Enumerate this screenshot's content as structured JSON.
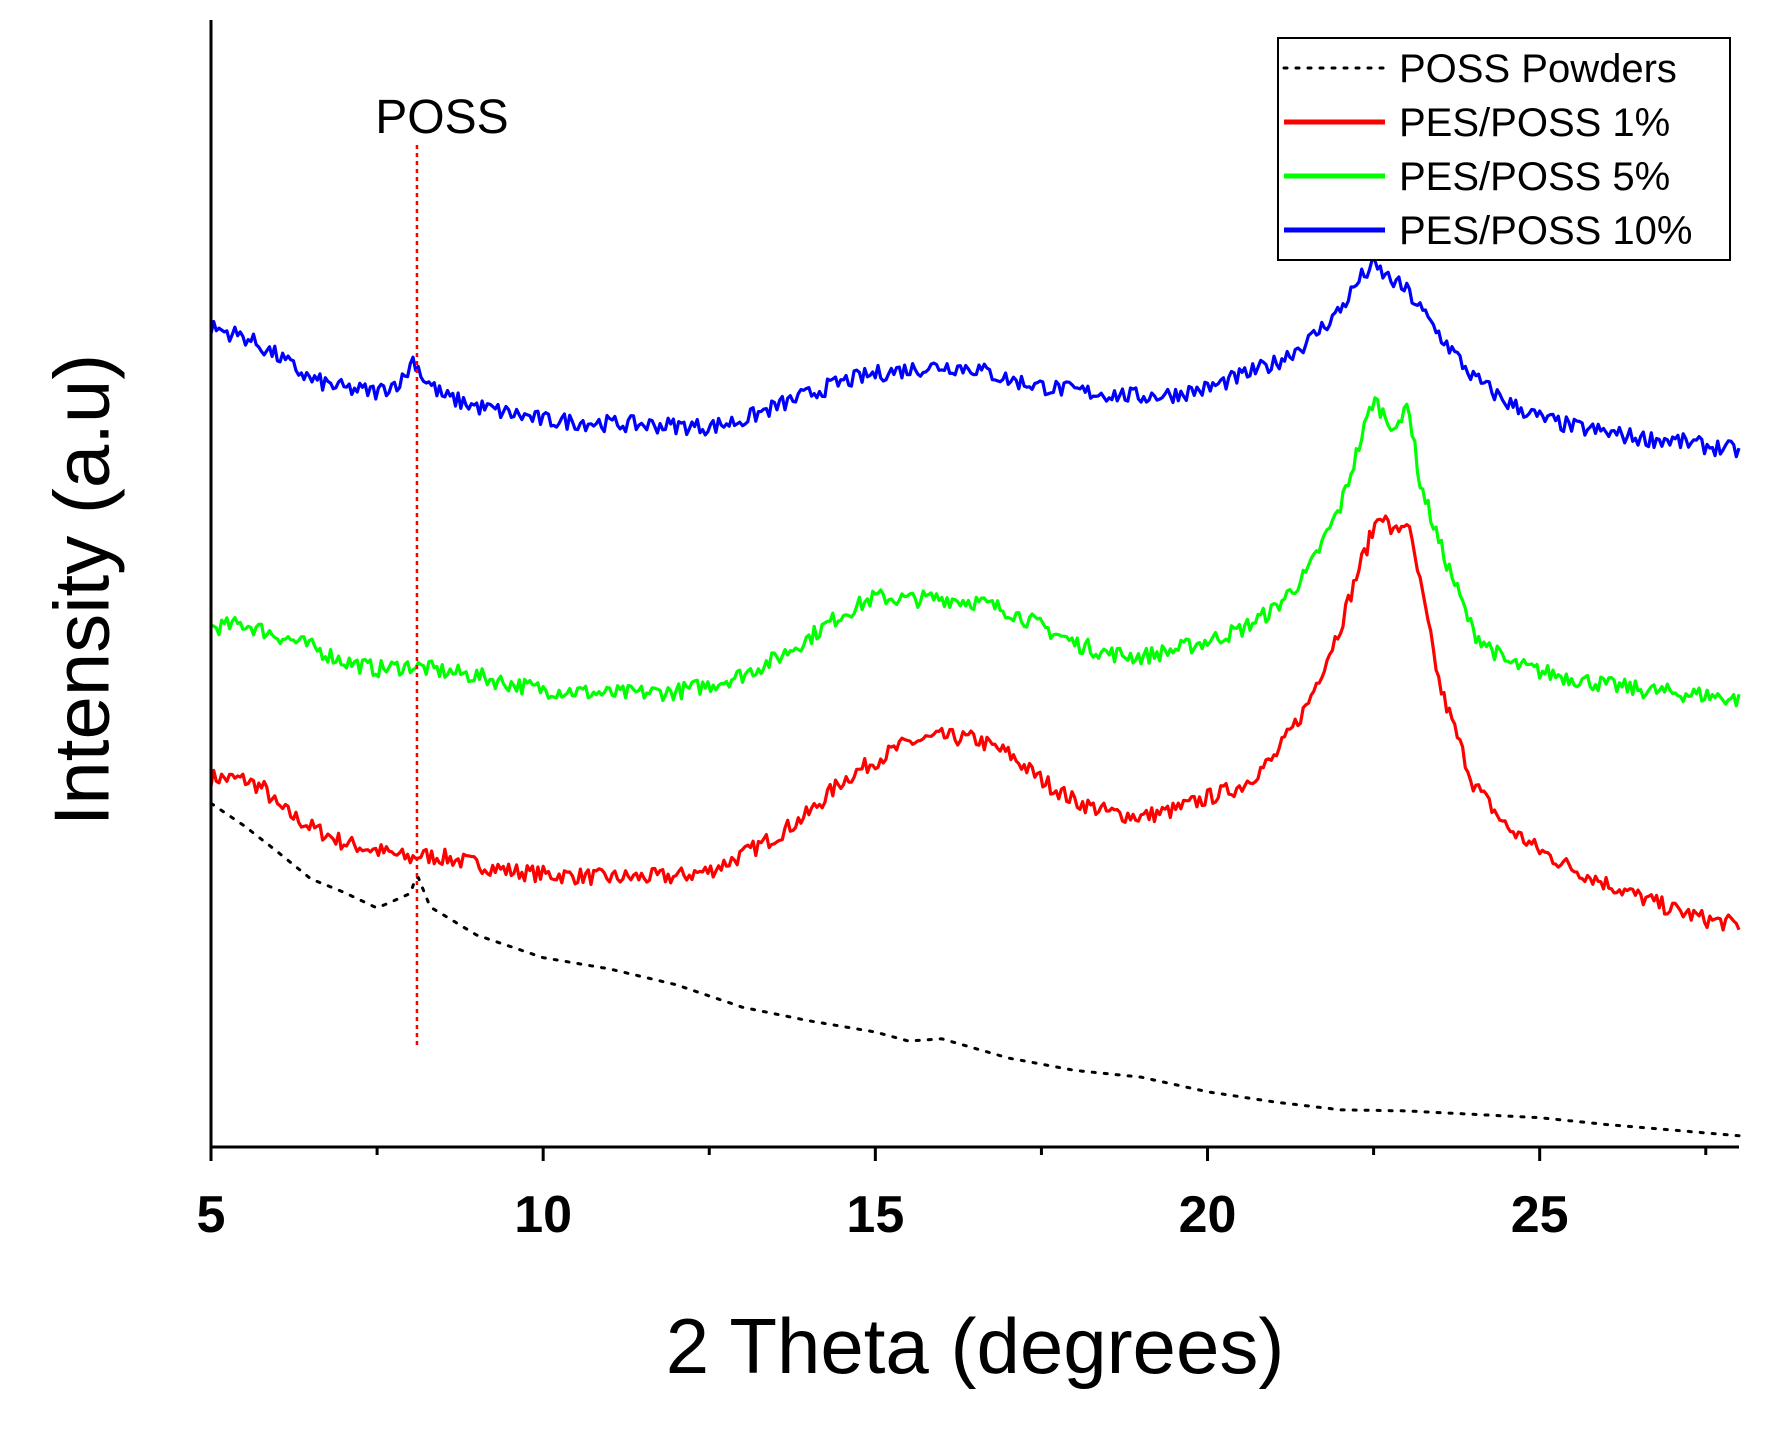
{
  "chart_data": {
    "type": "line",
    "title": "",
    "xlabel": "2 Theta (degrees)",
    "ylabel": "Intensity (a.u)",
    "xlim": [
      5,
      28
    ],
    "ylim": [
      0,
      100
    ],
    "x_ticks": [
      5,
      10,
      15,
      20,
      25
    ],
    "x_tick_labels": [
      "5",
      "10",
      "15",
      "20",
      "25"
    ],
    "y_ticks_shown": false,
    "grid": false,
    "legend_position": "top-right",
    "annotation": {
      "label": "POSS",
      "x": 8.1,
      "style": "red dotted vertical line"
    },
    "series": [
      {
        "name": "POSS Powders",
        "color": "#000000",
        "style": "dotted",
        "points": [
          [
            5,
            30.5
          ],
          [
            5.5,
            28.5
          ],
          [
            6,
            26.2
          ],
          [
            6.5,
            23.8
          ],
          [
            7,
            22.6
          ],
          [
            7.5,
            21.2
          ],
          [
            8,
            22.5
          ],
          [
            8.1,
            24.2
          ],
          [
            8.3,
            21.3
          ],
          [
            9,
            18.8
          ],
          [
            10,
            16.8
          ],
          [
            11,
            15.8
          ],
          [
            12,
            14.4
          ],
          [
            13,
            12.4
          ],
          [
            14,
            11.2
          ],
          [
            15,
            10.2
          ],
          [
            15.5,
            9.4
          ],
          [
            16,
            9.6
          ],
          [
            17,
            7.9
          ],
          [
            18,
            6.8
          ],
          [
            19,
            6.2
          ],
          [
            20,
            4.9
          ],
          [
            21,
            4.0
          ],
          [
            22,
            3.3
          ],
          [
            23,
            3.2
          ],
          [
            24,
            2.9
          ],
          [
            25,
            2.6
          ],
          [
            26,
            2.0
          ],
          [
            27,
            1.5
          ],
          [
            28,
            1.0
          ]
        ]
      },
      {
        "name": "PES/POSS 1%",
        "color": "#ff0000",
        "style": "solid",
        "points": [
          [
            5,
            32.8
          ],
          [
            5.5,
            32.6
          ],
          [
            5.8,
            31.8
          ],
          [
            6,
            30.2
          ],
          [
            6.5,
            28.4
          ],
          [
            7,
            27.0
          ],
          [
            7.5,
            26.3
          ],
          [
            8,
            25.6
          ],
          [
            8.1,
            25.9
          ],
          [
            8.5,
            25.7
          ],
          [
            9,
            25.1
          ],
          [
            9.5,
            24.5
          ],
          [
            10,
            24.2
          ],
          [
            11,
            23.9
          ],
          [
            12,
            24.0
          ],
          [
            12.5,
            24.5
          ],
          [
            13,
            25.9
          ],
          [
            13.5,
            27.6
          ],
          [
            14,
            29.6
          ],
          [
            14.5,
            32.5
          ],
          [
            15,
            34.3
          ],
          [
            15.5,
            35.9
          ],
          [
            16,
            36.4
          ],
          [
            16.5,
            36.2
          ],
          [
            17,
            34.9
          ],
          [
            17.5,
            32.6
          ],
          [
            18,
            30.7
          ],
          [
            18.5,
            29.7
          ],
          [
            19,
            29.3
          ],
          [
            19.5,
            29.9
          ],
          [
            20,
            31.0
          ],
          [
            20.5,
            32.0
          ],
          [
            21,
            34.5
          ],
          [
            21.5,
            39.2
          ],
          [
            22,
            46.2
          ],
          [
            22.3,
            51.7
          ],
          [
            22.6,
            56.4
          ],
          [
            22.8,
            54.4
          ],
          [
            23,
            55.6
          ],
          [
            23.2,
            50.0
          ],
          [
            23.5,
            40.8
          ],
          [
            24,
            32.3
          ],
          [
            24.5,
            28.4
          ],
          [
            25,
            26.3
          ],
          [
            25.5,
            24.7
          ],
          [
            26,
            23.4
          ],
          [
            26.5,
            22.2
          ],
          [
            27,
            21.1
          ],
          [
            27.5,
            20.2
          ],
          [
            28,
            19.7
          ]
        ]
      },
      {
        "name": "PES/POSS 5%",
        "color": "#00ff00",
        "style": "solid",
        "points": [
          [
            5,
            46.1
          ],
          [
            5.5,
            46.4
          ],
          [
            6,
            45.4
          ],
          [
            6.5,
            44.4
          ],
          [
            7,
            43.1
          ],
          [
            7.5,
            42.4
          ],
          [
            8,
            42.7
          ],
          [
            8.5,
            42.2
          ],
          [
            9,
            41.8
          ],
          [
            9.5,
            41.1
          ],
          [
            10,
            40.6
          ],
          [
            11,
            40.2
          ],
          [
            12,
            40.4
          ],
          [
            12.5,
            41.0
          ],
          [
            13,
            41.9
          ],
          [
            13.5,
            43.3
          ],
          [
            14,
            45.2
          ],
          [
            14.5,
            47.3
          ],
          [
            15,
            48.8
          ],
          [
            15.5,
            48.6
          ],
          [
            16,
            48.7
          ],
          [
            16.5,
            48.4
          ],
          [
            17,
            47.6
          ],
          [
            17.5,
            46.2
          ],
          [
            18,
            44.7
          ],
          [
            18.5,
            43.8
          ],
          [
            19,
            43.5
          ],
          [
            19.5,
            44.1
          ],
          [
            20,
            44.9
          ],
          [
            20.5,
            45.9
          ],
          [
            21,
            47.7
          ],
          [
            21.5,
            50.9
          ],
          [
            22,
            56.8
          ],
          [
            22.3,
            62.6
          ],
          [
            22.5,
            66.4
          ],
          [
            22.7,
            64.6
          ],
          [
            22.9,
            63.6
          ],
          [
            23,
            66.6
          ],
          [
            23.2,
            58.9
          ],
          [
            23.5,
            53.4
          ],
          [
            24,
            45.7
          ],
          [
            24.5,
            43.0
          ],
          [
            25,
            42.2
          ],
          [
            25.5,
            41.6
          ],
          [
            26,
            41.0
          ],
          [
            26.5,
            40.6
          ],
          [
            27,
            40.3
          ],
          [
            27.5,
            40.1
          ],
          [
            28,
            39.7
          ]
        ]
      },
      {
        "name": "PES/POSS 10%",
        "color": "#0000ff",
        "style": "solid",
        "points": [
          [
            5,
            72.7
          ],
          [
            5.5,
            71.9
          ],
          [
            6,
            70.2
          ],
          [
            6.5,
            68.1
          ],
          [
            7,
            67.3
          ],
          [
            7.5,
            67.0
          ],
          [
            7.9,
            68.1
          ],
          [
            8.05,
            70.0
          ],
          [
            8.2,
            68.2
          ],
          [
            8.5,
            66.6
          ],
          [
            9,
            65.7
          ],
          [
            9.5,
            65.1
          ],
          [
            10,
            64.5
          ],
          [
            11,
            64.2
          ],
          [
            12,
            64.0
          ],
          [
            12.5,
            63.9
          ],
          [
            13,
            64.5
          ],
          [
            13.5,
            65.7
          ],
          [
            14,
            66.8
          ],
          [
            14.5,
            67.9
          ],
          [
            15,
            68.6
          ],
          [
            15.5,
            69.0
          ],
          [
            16,
            69.3
          ],
          [
            16.5,
            69.1
          ],
          [
            17,
            68.1
          ],
          [
            17.5,
            67.5
          ],
          [
            18,
            67.1
          ],
          [
            18.5,
            66.8
          ],
          [
            19,
            66.6
          ],
          [
            19.5,
            66.8
          ],
          [
            20,
            67.3
          ],
          [
            20.5,
            68.4
          ],
          [
            21,
            69.5
          ],
          [
            21.5,
            71.4
          ],
          [
            22,
            74.3
          ],
          [
            22.3,
            77.1
          ],
          [
            22.5,
            78.2
          ],
          [
            22.7,
            77.2
          ],
          [
            23,
            76.0
          ],
          [
            23.5,
            72.0
          ],
          [
            24,
            68.3
          ],
          [
            24.5,
            66.1
          ],
          [
            25,
            64.7
          ],
          [
            25.5,
            63.9
          ],
          [
            26,
            63.4
          ],
          [
            26.5,
            62.9
          ],
          [
            27,
            62.7
          ],
          [
            27.5,
            62.2
          ],
          [
            28,
            61.8
          ]
        ]
      }
    ]
  }
}
